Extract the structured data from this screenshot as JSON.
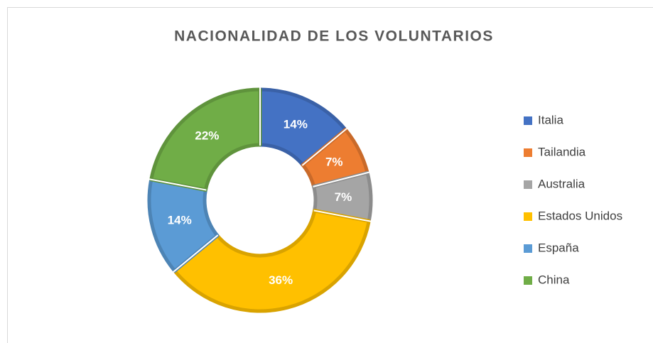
{
  "chart_data": {
    "type": "donut",
    "title": "NACIONALIDAD DE LOS VOLUNTARIOS",
    "categories": [
      "Italia",
      "Tailandia",
      "Australia",
      "Estados Unidos",
      "España",
      "China"
    ],
    "values": [
      14,
      7,
      7,
      36,
      14,
      22
    ],
    "value_labels": [
      "14%",
      "7%",
      "7%",
      "36%",
      "14%",
      "22%"
    ],
    "colors": [
      "#4472c4",
      "#ed7d31",
      "#a5a5a5",
      "#ffc000",
      "#5b9bd5",
      "#70ad47"
    ],
    "legend": "right"
  }
}
